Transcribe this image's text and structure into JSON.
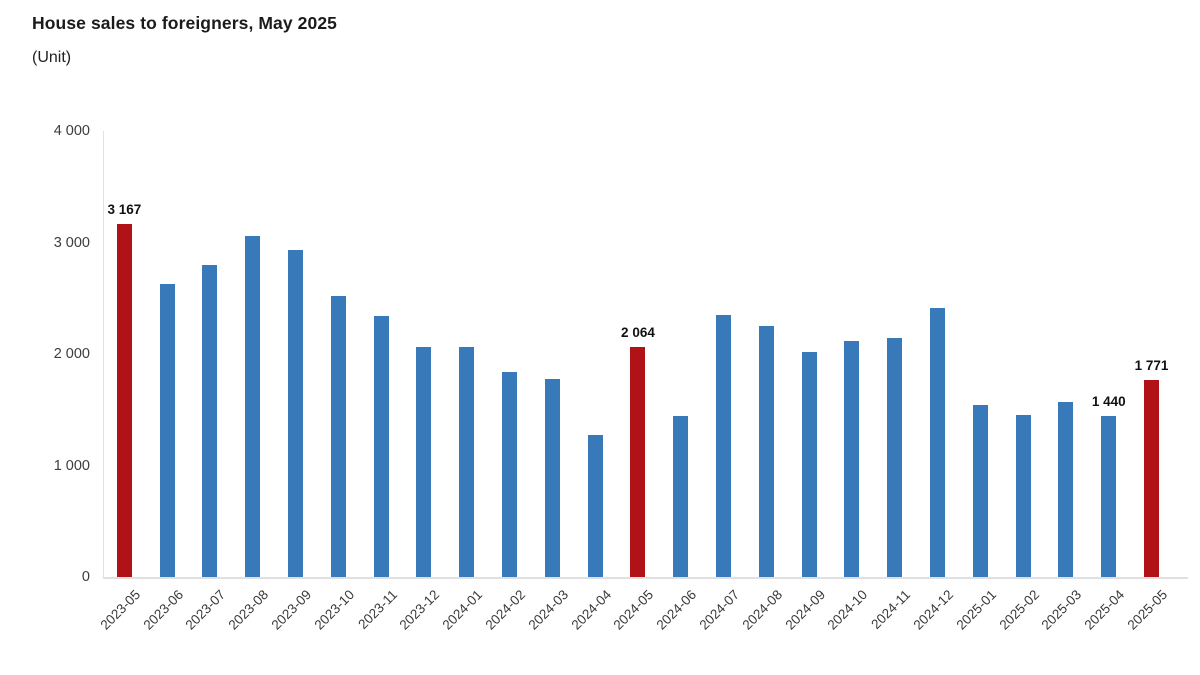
{
  "header": {
    "title": "House sales to foreigners, May 2025",
    "subtitle": "(Unit)"
  },
  "colors": {
    "bar_default": "#3879BA",
    "bar_highlight": "#B11217",
    "axis_line": "#e2e2e2",
    "label_text": "#111111",
    "tick_text": "#3a3a3a"
  },
  "chart_data": {
    "type": "bar",
    "title": "House sales to foreigners, May 2025",
    "unit_label": "(Unit)",
    "categories": [
      "2023-05",
      "2023-06",
      "2023-07",
      "2023-08",
      "2023-09",
      "2023-10",
      "2023-11",
      "2023-12",
      "2024-01",
      "2024-02",
      "2024-03",
      "2024-04",
      "2024-05",
      "2024-06",
      "2024-07",
      "2024-08",
      "2024-09",
      "2024-10",
      "2024-11",
      "2024-12",
      "2025-01",
      "2025-02",
      "2025-03",
      "2025-04",
      "2025-05"
    ],
    "values": [
      3167,
      2625,
      2795,
      3055,
      2930,
      2525,
      2340,
      2060,
      2065,
      1840,
      1775,
      1270,
      2064,
      1440,
      2350,
      2255,
      2020,
      2120,
      2145,
      2410,
      1540,
      1450,
      1570,
      1440,
      1771
    ],
    "highlighted_categories": [
      "2023-05",
      "2024-05",
      "2025-05"
    ],
    "data_labels": {
      "2023-05": "3 167",
      "2024-05": "2 064",
      "2025-04": "1 440",
      "2025-05": "1 771"
    },
    "ylim": [
      0,
      4000
    ],
    "yticks": [
      {
        "value": 4000,
        "label": "4 000"
      },
      {
        "value": 3000,
        "label": "3 000"
      },
      {
        "value": 2000,
        "label": "2 000"
      },
      {
        "value": 1000,
        "label": "1 000"
      },
      {
        "value": 0,
        "label": "0"
      }
    ],
    "grid": false,
    "legend": false,
    "xlabel": "",
    "ylabel": ""
  }
}
